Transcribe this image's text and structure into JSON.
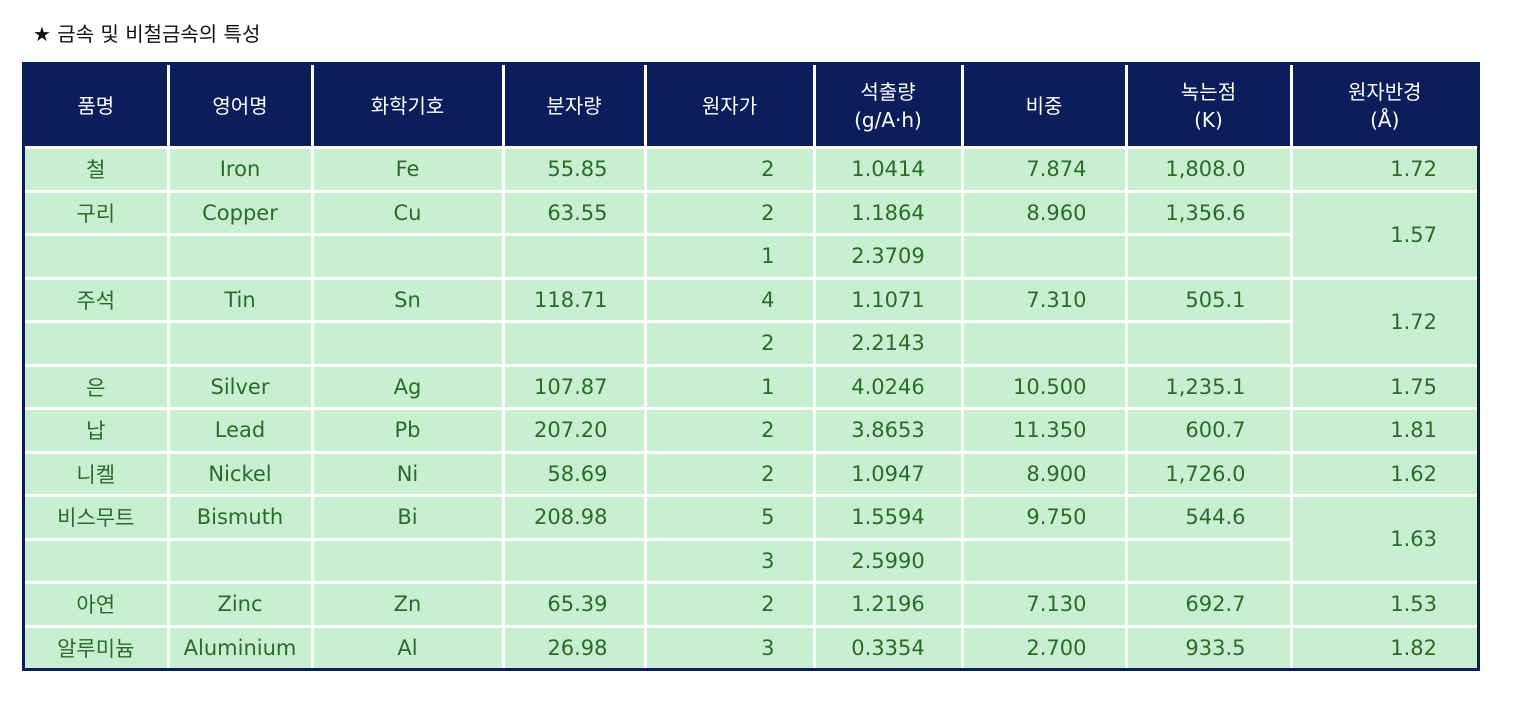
{
  "title": "★ 금속 및 비철금속의 특성",
  "table": {
    "header": [
      "품명",
      "영어명",
      "화학기호",
      "분자량",
      "원자가",
      "석출량\n(g/A·h)",
      "비중",
      "녹는점\n(K)",
      "원자반경\n(Å)"
    ],
    "metals": [
      {
        "name": "철",
        "english": "Iron",
        "symbol": "Fe",
        "mw": "55.85",
        "density": "7.874",
        "melting": "1,808.0",
        "radius": "1.72",
        "states": [
          {
            "valence": "2",
            "output": "1.0414"
          }
        ]
      },
      {
        "name": "구리",
        "english": "Copper",
        "symbol": "Cu",
        "mw": "63.55",
        "density": "8.960",
        "melting": "1,356.6",
        "radius": "1.57",
        "states": [
          {
            "valence": "2",
            "output": "1.1864"
          },
          {
            "valence": "1",
            "output": "2.3709"
          }
        ]
      },
      {
        "name": "주석",
        "english": "Tin",
        "symbol": "Sn",
        "mw": "118.71",
        "density": "7.310",
        "melting": "505.1",
        "radius": "1.72",
        "states": [
          {
            "valence": "4",
            "output": "1.1071"
          },
          {
            "valence": "2",
            "output": "2.2143"
          }
        ]
      },
      {
        "name": "은",
        "english": "Silver",
        "symbol": "Ag",
        "mw": "107.87",
        "density": "10.500",
        "melting": "1,235.1",
        "radius": "1.75",
        "states": [
          {
            "valence": "1",
            "output": "4.0246"
          }
        ]
      },
      {
        "name": "납",
        "english": "Lead",
        "symbol": "Pb",
        "mw": "207.20",
        "density": "11.350",
        "melting": "600.7",
        "radius": "1.81",
        "states": [
          {
            "valence": "2",
            "output": "3.8653"
          }
        ]
      },
      {
        "name": "니켈",
        "english": "Nickel",
        "symbol": "Ni",
        "mw": "58.69",
        "density": "8.900",
        "melting": "1,726.0",
        "radius": "1.62",
        "states": [
          {
            "valence": "2",
            "output": "1.0947"
          }
        ]
      },
      {
        "name": "비스무트",
        "english": "Bismuth",
        "symbol": "Bi",
        "mw": "208.98",
        "density": "9.750",
        "melting": "544.6",
        "radius": "1.63",
        "states": [
          {
            "valence": "5",
            "output": "1.5594"
          },
          {
            "valence": "3",
            "output": "2.5990"
          }
        ]
      },
      {
        "name": "아연",
        "english": "Zinc",
        "symbol": "Zn",
        "mw": "65.39",
        "density": "7.130",
        "melting": "692.7",
        "radius": "1.53",
        "states": [
          {
            "valence": "2",
            "output": "1.2196"
          }
        ]
      },
      {
        "name": "알루미늄",
        "english": "Aluminium",
        "symbol": "Al",
        "mw": "26.98",
        "density": "2.700",
        "melting": "933.5",
        "radius": "1.82",
        "states": [
          {
            "valence": "3",
            "output": "0.3354"
          }
        ]
      }
    ]
  }
}
